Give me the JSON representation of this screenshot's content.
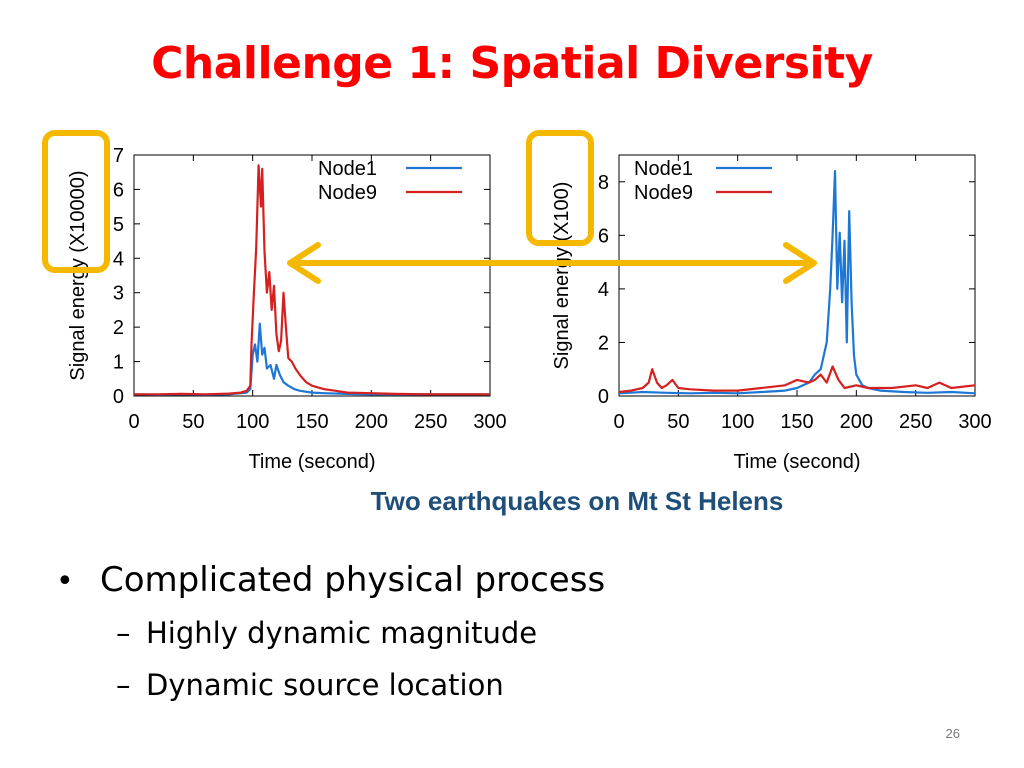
{
  "slide": {
    "title": "Challenge 1: Spatial Diversity",
    "caption": "Two earthquakes on Mt St Helens",
    "slide_number": "26",
    "bullets": [
      {
        "text": "Complicated physical process",
        "sub": [
          "Highly dynamic magnitude",
          "Dynamic source location"
        ]
      }
    ],
    "colors": {
      "title": "#ff0000",
      "caption": "#1f4e79",
      "highlight": "#f5b800",
      "node1": "#1f77d4",
      "node9": "#d62020"
    }
  },
  "chart_data": [
    {
      "type": "line",
      "title": "",
      "xlabel": "Time (second)",
      "ylabel": "Signal energy (X10000)",
      "xlim": [
        0,
        300
      ],
      "ylim": [
        0,
        7
      ],
      "xticks": [
        0,
        50,
        100,
        150,
        200,
        250,
        300
      ],
      "yticks": [
        0,
        1,
        2,
        3,
        4,
        5,
        6,
        7
      ],
      "legend": "top-right",
      "grid": false,
      "series": [
        {
          "name": "Node1",
          "color": "#1f77d4",
          "x": [
            0,
            20,
            40,
            60,
            80,
            90,
            95,
            98,
            100,
            102,
            104,
            106,
            108,
            110,
            112,
            115,
            118,
            120,
            123,
            126,
            130,
            135,
            140,
            150,
            160,
            180,
            200,
            250,
            300
          ],
          "y": [
            0.05,
            0.04,
            0.05,
            0.04,
            0.05,
            0.08,
            0.1,
            0.2,
            1.2,
            1.5,
            1.0,
            2.1,
            1.2,
            1.4,
            0.8,
            0.9,
            0.5,
            0.9,
            0.6,
            0.4,
            0.3,
            0.2,
            0.15,
            0.1,
            0.08,
            0.06,
            0.05,
            0.05,
            0.05
          ]
        },
        {
          "name": "Node9",
          "color": "#d62020",
          "x": [
            0,
            20,
            40,
            60,
            80,
            90,
            95,
            98,
            99,
            101,
            103,
            105,
            107,
            108,
            110,
            112,
            114,
            116,
            118,
            120,
            122,
            124,
            126,
            128,
            130,
            133,
            136,
            140,
            145,
            150,
            155,
            160,
            170,
            180,
            200,
            220,
            250,
            300
          ],
          "y": [
            0.05,
            0.05,
            0.06,
            0.05,
            0.07,
            0.1,
            0.15,
            0.3,
            1.5,
            3.0,
            4.3,
            6.7,
            5.5,
            6.6,
            4.2,
            3.0,
            3.6,
            2.5,
            3.2,
            1.8,
            1.3,
            1.6,
            3.0,
            2.0,
            1.1,
            1.0,
            0.8,
            0.6,
            0.4,
            0.3,
            0.25,
            0.2,
            0.15,
            0.1,
            0.08,
            0.06,
            0.05,
            0.05
          ]
        }
      ]
    },
    {
      "type": "line",
      "title": "",
      "xlabel": "Time (second)",
      "ylabel": "Signal energy (X100)",
      "xlim": [
        0,
        300
      ],
      "ylim": [
        0,
        9
      ],
      "xticks": [
        0,
        50,
        100,
        150,
        200,
        250,
        300
      ],
      "yticks": [
        0,
        2,
        4,
        6,
        8
      ],
      "legend": "top-left",
      "grid": false,
      "series": [
        {
          "name": "Node1",
          "color": "#1f77d4",
          "x": [
            0,
            20,
            40,
            60,
            80,
            100,
            120,
            140,
            150,
            160,
            165,
            170,
            175,
            178,
            180,
            182,
            184,
            186,
            188,
            190,
            192,
            194,
            196,
            198,
            200,
            205,
            210,
            220,
            240,
            260,
            280,
            300
          ],
          "y": [
            0.1,
            0.15,
            0.12,
            0.1,
            0.12,
            0.1,
            0.15,
            0.2,
            0.3,
            0.5,
            0.8,
            1.0,
            2.0,
            4.0,
            6.0,
            8.4,
            4.0,
            6.1,
            3.5,
            5.8,
            2.0,
            6.9,
            3.5,
            1.5,
            0.8,
            0.4,
            0.3,
            0.2,
            0.15,
            0.12,
            0.15,
            0.1
          ]
        },
        {
          "name": "Node9",
          "color": "#d62020",
          "x": [
            0,
            10,
            20,
            25,
            28,
            32,
            36,
            40,
            45,
            50,
            60,
            80,
            100,
            120,
            140,
            150,
            160,
            165,
            170,
            175,
            180,
            185,
            190,
            200,
            210,
            230,
            250,
            260,
            270,
            280,
            300
          ],
          "y": [
            0.15,
            0.2,
            0.3,
            0.5,
            1.0,
            0.5,
            0.3,
            0.4,
            0.6,
            0.3,
            0.25,
            0.2,
            0.2,
            0.3,
            0.4,
            0.6,
            0.5,
            0.6,
            0.8,
            0.5,
            1.1,
            0.6,
            0.3,
            0.4,
            0.3,
            0.3,
            0.4,
            0.3,
            0.5,
            0.3,
            0.4
          ]
        }
      ]
    }
  ]
}
